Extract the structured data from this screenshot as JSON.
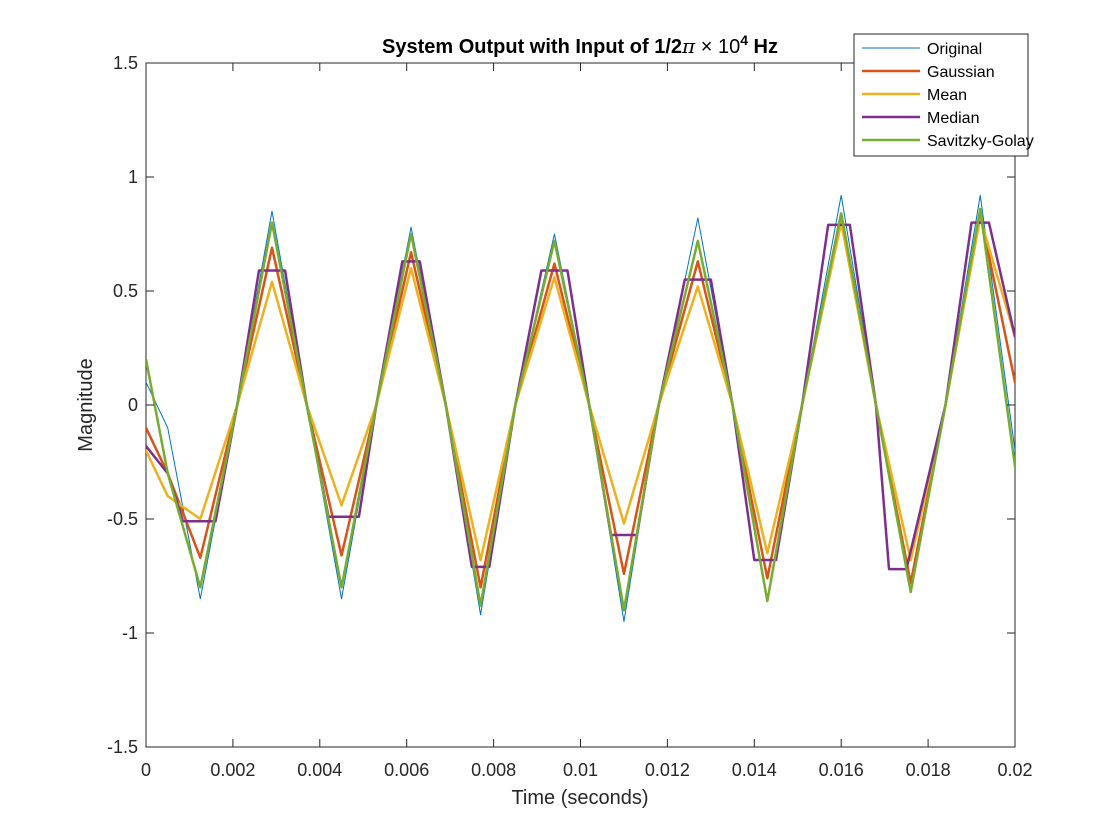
{
  "chart_data": {
    "type": "line",
    "title": {
      "main": "System Output with Input of 1/2",
      "pi": "π",
      "times": " × 10",
      "exp": "4",
      "unit": " Hz"
    },
    "xlabel": "Time (seconds)",
    "ylabel": "Magnitude",
    "xlim": [
      0,
      0.02
    ],
    "ylim": [
      -1.5,
      1.5
    ],
    "xticks": [
      0,
      0.002,
      0.004,
      0.006,
      0.008,
      0.01,
      0.012,
      0.014,
      0.016,
      0.018,
      0.02
    ],
    "xtick_labels": [
      "0",
      "0.002",
      "0.004",
      "0.006",
      "0.008",
      "0.01",
      "0.012",
      "0.014",
      "0.016",
      "0.018",
      "0.02"
    ],
    "yticks": [
      -1.5,
      -1,
      -0.5,
      0,
      0.5,
      1,
      1.5
    ],
    "ytick_labels": [
      "-1.5",
      "-1",
      "-0.5",
      "0",
      "0.5",
      "1",
      "1.5"
    ],
    "grid": false,
    "legend_position": "top-right",
    "series": [
      {
        "name": "Original",
        "color": "#0072BD",
        "line_width": 1,
        "x": [
          0,
          0.0005,
          0.00125,
          0.0021,
          0.0029,
          0.0037,
          0.0045,
          0.0053,
          0.0061,
          0.0069,
          0.0077,
          0.0085,
          0.0094,
          0.0102,
          0.011,
          0.0118,
          0.0127,
          0.0135,
          0.0143,
          0.0151,
          0.016,
          0.0168,
          0.0176,
          0.0184,
          0.0192,
          0.02
        ],
        "y": [
          0.1,
          -0.1,
          -0.85,
          0.0,
          0.85,
          0.0,
          -0.85,
          0.0,
          0.78,
          0.0,
          -0.92,
          0.0,
          0.75,
          0.0,
          -0.95,
          0.0,
          0.82,
          0.0,
          -0.85,
          0.0,
          0.92,
          0.0,
          -0.82,
          0.0,
          0.92,
          -0.2
        ]
      },
      {
        "name": "Gaussian",
        "color": "#D95319",
        "line_width": 2.5,
        "x": [
          0,
          0.0005,
          0.00125,
          0.0021,
          0.0029,
          0.0037,
          0.0045,
          0.0053,
          0.0061,
          0.0069,
          0.0077,
          0.0085,
          0.0094,
          0.0102,
          0.011,
          0.0118,
          0.0127,
          0.0135,
          0.0143,
          0.0151,
          0.016,
          0.0168,
          0.0176,
          0.0184,
          0.0192,
          0.02
        ],
        "y": [
          -0.1,
          -0.3,
          -0.67,
          0.0,
          0.69,
          0.0,
          -0.66,
          0.0,
          0.67,
          0.0,
          -0.8,
          0.0,
          0.62,
          0.0,
          -0.74,
          0.0,
          0.63,
          0.0,
          -0.76,
          0.0,
          0.84,
          0.0,
          -0.78,
          0.0,
          0.84,
          0.1
        ]
      },
      {
        "name": "Mean",
        "color": "#EDB120",
        "line_width": 2.5,
        "x": [
          0,
          0.0005,
          0.00125,
          0.0021,
          0.0029,
          0.0037,
          0.0045,
          0.0053,
          0.0061,
          0.0069,
          0.0077,
          0.0085,
          0.0094,
          0.0102,
          0.011,
          0.0118,
          0.0127,
          0.0135,
          0.0143,
          0.0151,
          0.016,
          0.0168,
          0.0176,
          0.0184,
          0.0192,
          0.02
        ],
        "y": [
          -0.2,
          -0.4,
          -0.5,
          0.0,
          0.54,
          0.0,
          -0.44,
          0.0,
          0.6,
          0.0,
          -0.68,
          0.0,
          0.56,
          0.0,
          -0.52,
          0.0,
          0.52,
          0.0,
          -0.65,
          0.0,
          0.8,
          0.0,
          -0.68,
          0.0,
          0.82,
          0.3
        ]
      },
      {
        "name": "Median",
        "color": "#7E2F8E",
        "line_width": 2.5,
        "x": [
          0,
          0.0005,
          0.00085,
          0.0016,
          0.0021,
          0.0026,
          0.0032,
          0.0037,
          0.0042,
          0.0049,
          0.0053,
          0.0059,
          0.0063,
          0.0069,
          0.0075,
          0.0079,
          0.0085,
          0.0091,
          0.0097,
          0.0102,
          0.0107,
          0.0113,
          0.0118,
          0.0124,
          0.013,
          0.0135,
          0.014,
          0.0145,
          0.0151,
          0.0157,
          0.0162,
          0.0168,
          0.0171,
          0.0175,
          0.0184,
          0.019,
          0.0194,
          0.02
        ],
        "y": [
          -0.18,
          -0.3,
          -0.51,
          -0.51,
          0.0,
          0.59,
          0.59,
          0.0,
          -0.49,
          -0.49,
          0.0,
          0.63,
          0.63,
          0.0,
          -0.71,
          -0.71,
          0.0,
          0.59,
          0.59,
          0.0,
          -0.57,
          -0.57,
          0.0,
          0.55,
          0.55,
          0.0,
          -0.68,
          -0.68,
          0.0,
          0.79,
          0.79,
          0.0,
          -0.72,
          -0.72,
          0.0,
          0.8,
          0.8,
          0.3
        ]
      },
      {
        "name": "Savitzky-Golay",
        "color": "#77AC30",
        "line_width": 2.5,
        "x": [
          0,
          0.0005,
          0.00125,
          0.0021,
          0.0029,
          0.0037,
          0.0045,
          0.0053,
          0.0061,
          0.0069,
          0.0077,
          0.0085,
          0.0094,
          0.0102,
          0.011,
          0.0118,
          0.0127,
          0.0135,
          0.0143,
          0.0151,
          0.016,
          0.0168,
          0.0176,
          0.0184,
          0.0192,
          0.02
        ],
        "y": [
          0.2,
          -0.3,
          -0.8,
          0.0,
          0.8,
          0.0,
          -0.8,
          0.0,
          0.75,
          0.0,
          -0.88,
          0.0,
          0.72,
          0.0,
          -0.9,
          0.0,
          0.72,
          0.0,
          -0.86,
          0.0,
          0.84,
          0.0,
          -0.82,
          0.0,
          0.86,
          -0.27
        ]
      }
    ]
  }
}
